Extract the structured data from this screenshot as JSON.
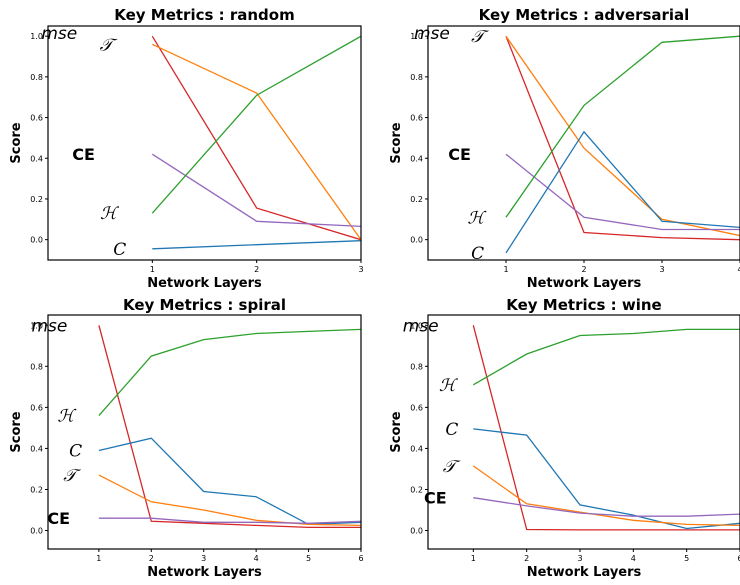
{
  "chart_data": [
    {
      "type": "line",
      "title": "Key Metrics : random",
      "xlabel": "Network Layers",
      "ylabel": "Score",
      "x": [
        1,
        2,
        3
      ],
      "xlim": [
        0,
        3
      ],
      "ylim": [
        -0.1,
        1.05
      ],
      "yticks": [
        "0.0",
        "0.2",
        "0.4",
        "0.6",
        "0.8",
        "1.0"
      ],
      "grid": false,
      "series": [
        {
          "name": "mse",
          "color": "#d62728",
          "values": [
            1.0,
            0.155,
            0.0
          ]
        },
        {
          "name": "𝒯",
          "color": "#ff7f0e",
          "values": [
            0.96,
            0.72,
            0.0
          ]
        },
        {
          "name": "CE",
          "color": "#9467bd",
          "values": [
            0.42,
            0.09,
            0.065
          ]
        },
        {
          "name": "ℋ",
          "color": "#2ca02c",
          "values": [
            0.13,
            0.71,
            1.0
          ]
        },
        {
          "name": "C",
          "color": "#1f77b4",
          "values": [
            -0.045,
            -0.025,
            -0.005
          ]
        }
      ],
      "annotations": [
        {
          "text": "mse",
          "series": "mse"
        },
        {
          "text": "𝒯",
          "series": "𝒯"
        },
        {
          "text": "CE",
          "series": "CE"
        },
        {
          "text": "ℋ",
          "series": "ℋ"
        },
        {
          "text": "C",
          "series": "C"
        }
      ]
    },
    {
      "type": "line",
      "title": "Key Metrics : adversarial",
      "xlabel": "Network Layers",
      "ylabel": "Score",
      "x": [
        1,
        2,
        3,
        4
      ],
      "xlim": [
        0,
        4
      ],
      "ylim": [
        -0.1,
        1.05
      ],
      "yticks": [
        "0.0",
        "0.2",
        "0.4",
        "0.6",
        "0.8",
        "1.0"
      ],
      "grid": false,
      "series": [
        {
          "name": "mse",
          "color": "#d62728",
          "values": [
            1.0,
            0.035,
            0.01,
            0.0
          ]
        },
        {
          "name": "𝒯",
          "color": "#ff7f0e",
          "values": [
            1.0,
            0.45,
            0.1,
            0.02
          ]
        },
        {
          "name": "CE",
          "color": "#9467bd",
          "values": [
            0.42,
            0.11,
            0.05,
            0.05
          ]
        },
        {
          "name": "ℋ",
          "color": "#2ca02c",
          "values": [
            0.11,
            0.66,
            0.97,
            1.0
          ]
        },
        {
          "name": "C",
          "color": "#1f77b4",
          "values": [
            -0.065,
            0.53,
            0.09,
            0.06
          ]
        }
      ],
      "annotations": [
        {
          "text": "mse",
          "series": "mse"
        },
        {
          "text": "𝒯",
          "series": "𝒯"
        },
        {
          "text": "CE",
          "series": "CE"
        },
        {
          "text": "ℋ",
          "series": "ℋ"
        },
        {
          "text": "C",
          "series": "C"
        }
      ]
    },
    {
      "type": "line",
      "title": "Key Metrics : spiral",
      "xlabel": "Network Layers",
      "ylabel": "Score",
      "x": [
        1,
        2,
        3,
        4,
        5,
        6
      ],
      "xlim": [
        0.03,
        6
      ],
      "ylim": [
        -0.09,
        1.05
      ],
      "yticks": [
        "0.0",
        "0.2",
        "0.4",
        "0.6",
        "0.8",
        "1.0"
      ],
      "grid": false,
      "series": [
        {
          "name": "mse",
          "color": "#d62728",
          "values": [
            1.0,
            0.045,
            0.035,
            0.025,
            0.015,
            0.015
          ]
        },
        {
          "name": "ℋ",
          "color": "#2ca02c",
          "values": [
            0.56,
            0.85,
            0.93,
            0.96,
            0.97,
            0.98
          ]
        },
        {
          "name": "C",
          "color": "#1f77b4",
          "values": [
            0.39,
            0.45,
            0.19,
            0.165,
            0.03,
            0.04
          ]
        },
        {
          "name": "𝒯",
          "color": "#ff7f0e",
          "values": [
            0.27,
            0.14,
            0.1,
            0.05,
            0.03,
            0.025
          ]
        },
        {
          "name": "CE",
          "color": "#9467bd",
          "values": [
            0.06,
            0.06,
            0.04,
            0.04,
            0.035,
            0.045
          ]
        }
      ],
      "annotations": [
        {
          "text": "mse",
          "series": "mse"
        },
        {
          "text": "ℋ",
          "series": "ℋ"
        },
        {
          "text": "C",
          "series": "C"
        },
        {
          "text": "𝒯",
          "series": "𝒯"
        },
        {
          "text": "CE",
          "series": "CE"
        }
      ]
    },
    {
      "type": "line",
      "title": "Key Metrics : wine",
      "xlabel": "Network Layers",
      "ylabel": "Score",
      "x": [
        1,
        2,
        3,
        4,
        5,
        6
      ],
      "xlim": [
        0.15,
        6
      ],
      "ylim": [
        -0.09,
        1.05
      ],
      "yticks": [
        "0.0",
        "0.2",
        "0.4",
        "0.6",
        "0.8",
        "1.0"
      ],
      "grid": false,
      "series": [
        {
          "name": "mse",
          "color": "#d62728",
          "values": [
            1.0,
            0.005,
            0.003,
            0.003,
            0.003,
            0.003
          ]
        },
        {
          "name": "ℋ",
          "color": "#2ca02c",
          "values": [
            0.71,
            0.86,
            0.95,
            0.96,
            0.98,
            0.98
          ]
        },
        {
          "name": "C",
          "color": "#1f77b4",
          "values": [
            0.495,
            0.465,
            0.125,
            0.075,
            0.01,
            0.035
          ]
        },
        {
          "name": "𝒯",
          "color": "#ff7f0e",
          "values": [
            0.315,
            0.13,
            0.09,
            0.05,
            0.03,
            0.025
          ]
        },
        {
          "name": "CE",
          "color": "#9467bd",
          "values": [
            0.16,
            0.12,
            0.085,
            0.07,
            0.07,
            0.08
          ]
        }
      ],
      "annotations": [
        {
          "text": "mse",
          "series": "mse"
        },
        {
          "text": "ℋ",
          "series": "ℋ"
        },
        {
          "text": "C",
          "series": "C"
        },
        {
          "text": "𝒯",
          "series": "𝒯"
        },
        {
          "text": "CE",
          "series": "CE"
        }
      ]
    }
  ]
}
